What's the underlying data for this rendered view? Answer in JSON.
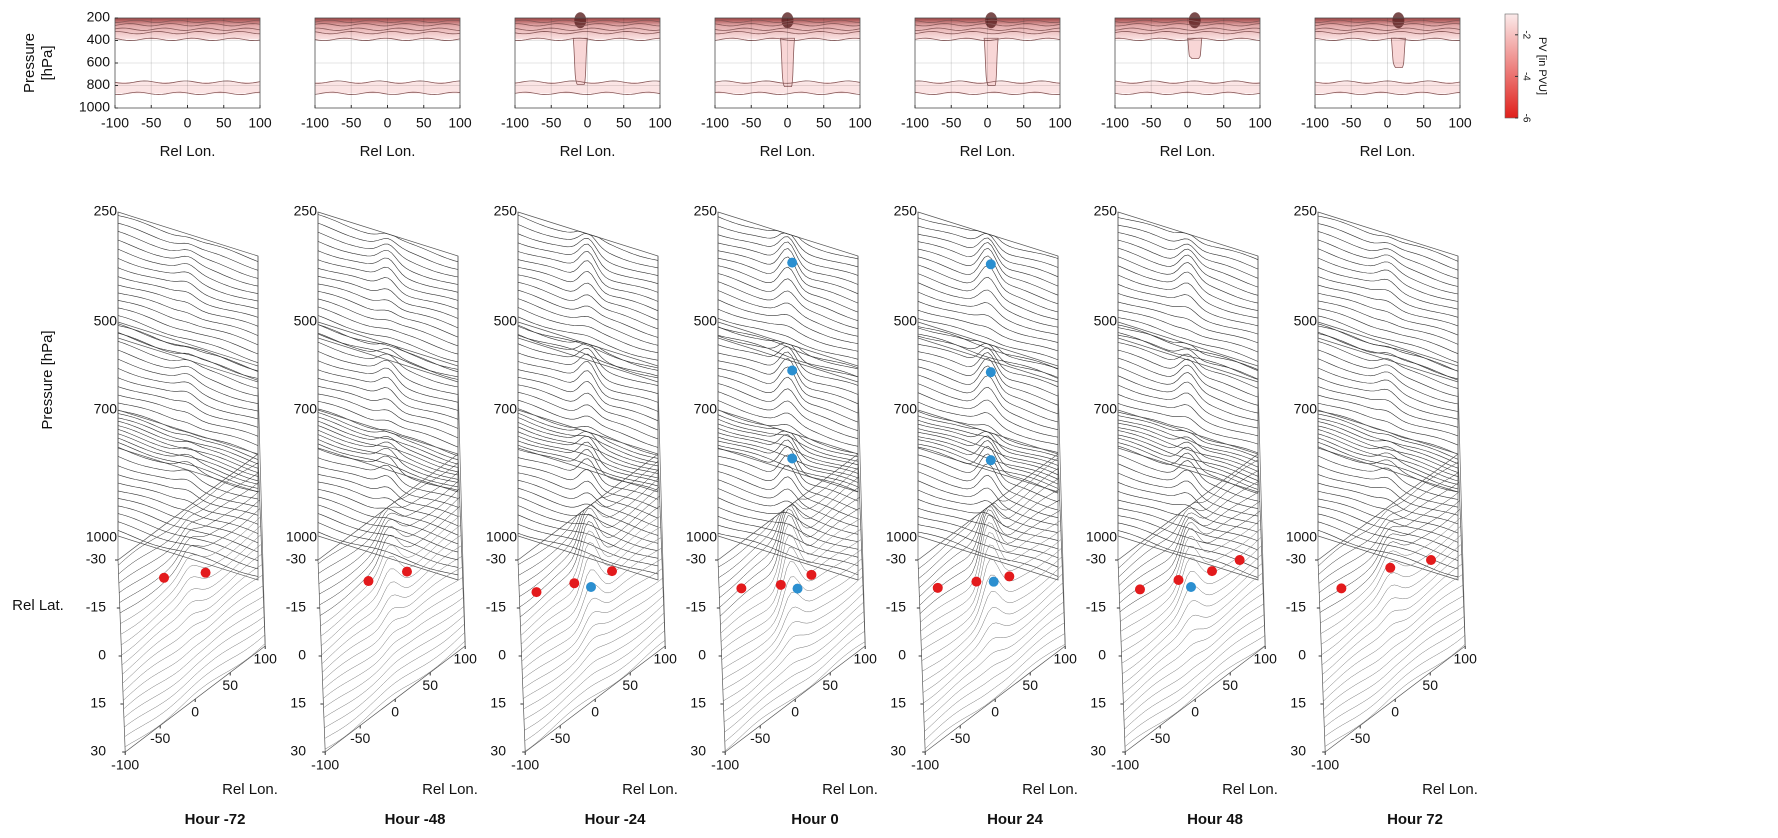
{
  "chart_data": [
    {
      "type": "cross-section",
      "xlabel": "Rel Lon.",
      "ylabel": [
        "Pressure",
        "[hPa]"
      ],
      "xlim": [
        -100,
        100
      ],
      "ylim": [
        200,
        1000
      ],
      "yinvert": true,
      "xticks": [
        -100,
        -50,
        0,
        50,
        100
      ],
      "yticks": [
        200,
        400,
        600,
        800,
        1000
      ],
      "grid": true
    },
    {
      "type": "cross-section",
      "xlabel": "Rel Lon.",
      "xlim": [
        -100,
        100
      ],
      "ylim": [
        200,
        1000
      ],
      "yinvert": true,
      "xticks": [
        -100,
        -50,
        0,
        50,
        100
      ],
      "grid": true
    },
    {
      "type": "cross-section",
      "xlabel": "Rel Lon.",
      "xlim": [
        -100,
        100
      ],
      "ylim": [
        200,
        1000
      ],
      "yinvert": true,
      "xticks": [
        -100,
        -50,
        0,
        50,
        100
      ],
      "grid": true
    },
    {
      "type": "cross-section",
      "xlabel": "Rel Lon.",
      "xlim": [
        -100,
        100
      ],
      "ylim": [
        200,
        1000
      ],
      "yinvert": true,
      "xticks": [
        -100,
        -50,
        0,
        50,
        100
      ],
      "grid": true
    },
    {
      "type": "cross-section",
      "xlabel": "Rel Lon.",
      "xlim": [
        -100,
        100
      ],
      "ylim": [
        200,
        1000
      ],
      "yinvert": true,
      "xticks": [
        -100,
        -50,
        0,
        50,
        100
      ],
      "grid": true
    },
    {
      "type": "cross-section",
      "xlabel": "Rel Lon.",
      "xlim": [
        -100,
        100
      ],
      "ylim": [
        200,
        1000
      ],
      "yinvert": true,
      "xticks": [
        -100,
        -50,
        0,
        50,
        100
      ],
      "grid": true
    },
    {
      "type": "cross-section",
      "xlabel": "Rel Lon.",
      "xlim": [
        -100,
        100
      ],
      "ylim": [
        200,
        1000
      ],
      "yinvert": true,
      "xticks": [
        -100,
        -50,
        0,
        50,
        100
      ],
      "grid": true
    },
    {
      "type": "colorbar",
      "label": "PV [in PVU]",
      "ylim": [
        -6,
        -1
      ],
      "yticks": [
        -2,
        -4,
        -6
      ],
      "colors": [
        "#fbeaea",
        "#e0201b"
      ]
    },
    {
      "type": "contour3d",
      "title": "Hour -72",
      "xlabel": "Rel Lon.",
      "ylabel": "Rel Lat.",
      "zlabel": "Pressure [hPa]",
      "xlim": [
        -100,
        100
      ],
      "ylim": [
        -30,
        30
      ],
      "zlim": [
        250,
        1000
      ],
      "xticks": [
        -100,
        -50,
        0,
        50,
        100
      ],
      "yticks": [
        -30,
        -15,
        0,
        15,
        30
      ],
      "zticks": [
        250,
        500,
        700,
        1000
      ],
      "series": [
        {
          "color": "#e31a1c",
          "x": [
            -37,
            21
          ],
          "y": [
            -14,
            -6
          ],
          "z": [
            1000,
            1000
          ]
        }
      ]
    },
    {
      "type": "contour3d",
      "title": "Hour -48",
      "xlabel": "Rel Lon.",
      "xlim": [
        -100,
        100
      ],
      "ylim": [
        -30,
        30
      ],
      "zlim": [
        250,
        1000
      ],
      "xticks": [
        -100,
        -50,
        0,
        50,
        100
      ],
      "yticks": [
        -30,
        -15,
        0,
        15,
        30
      ],
      "zticks": [
        250,
        500,
        700,
        1000
      ],
      "series": [
        {
          "color": "#e31a1c",
          "x": [
            -31,
            23
          ],
          "y": [
            -12,
            -6
          ],
          "z": [
            1000,
            1000
          ]
        }
      ]
    },
    {
      "type": "contour3d",
      "title": "Hour -24",
      "xlabel": "Rel Lon.",
      "xlim": [
        -100,
        100
      ],
      "ylim": [
        -30,
        30
      ],
      "zlim": [
        250,
        1000
      ],
      "xticks": [
        -100,
        -50,
        0,
        50,
        100
      ],
      "yticks": [
        -30,
        -15,
        0,
        15,
        30
      ],
      "zticks": [
        250,
        500,
        700,
        1000
      ],
      "series": [
        {
          "color": "#e31a1c",
          "x": [
            -76,
            -23,
            30
          ],
          "y": [
            -16,
            -10,
            -5
          ],
          "z": [
            1000,
            1000,
            1000
          ]
        },
        {
          "color": "#2b8fd0",
          "x": [
            0
          ],
          "y": [
            -5
          ],
          "z": [
            1000
          ]
        }
      ]
    },
    {
      "type": "contour3d",
      "title": "Hour 0",
      "xlabel": "Rel Lon.",
      "xlim": [
        -100,
        100
      ],
      "ylim": [
        -30,
        30
      ],
      "zlim": [
        250,
        1000
      ],
      "xticks": [
        -100,
        -50,
        0,
        50,
        100
      ],
      "yticks": [
        -30,
        -15,
        0,
        15,
        30
      ],
      "zticks": [
        250,
        500,
        700,
        1000
      ],
      "series": [
        {
          "color": "#e31a1c",
          "x": [
            -69,
            -14,
            29
          ],
          "y": [
            -16,
            -8,
            -4
          ],
          "z": [
            1000,
            1000,
            1000
          ]
        },
        {
          "color": "#2b8fd0",
          "x": [
            6,
            6,
            6,
            9
          ],
          "y": [
            -17,
            -18,
            -18,
            -3
          ],
          "z": [
            250,
            500,
            700,
            1000
          ]
        }
      ]
    },
    {
      "type": "contour3d",
      "title": "Hour 24",
      "xlabel": "Rel Lon.",
      "xlim": [
        -100,
        100
      ],
      "ylim": [
        -30,
        30
      ],
      "zlim": [
        250,
        1000
      ],
      "xticks": [
        -100,
        -50,
        0,
        50,
        100
      ],
      "yticks": [
        -30,
        -15,
        0,
        15,
        30
      ],
      "zticks": [
        250,
        500,
        700,
        1000
      ],
      "series": [
        {
          "color": "#e31a1c",
          "x": [
            -74,
            -20,
            26
          ],
          "y": [
            -17,
            -10,
            -4
          ],
          "z": [
            1000,
            1000,
            1000
          ]
        },
        {
          "color": "#2b8fd0",
          "x": [
            4,
            4,
            4,
            4
          ],
          "y": [
            -16,
            -17,
            -17,
            -6
          ],
          "z": [
            250,
            500,
            700,
            1000
          ]
        }
      ]
    },
    {
      "type": "contour3d",
      "title": "Hour 48",
      "xlabel": "Rel Lon.",
      "xlim": [
        -100,
        100
      ],
      "ylim": [
        -30,
        30
      ],
      "zlim": [
        250,
        1000
      ],
      "xticks": [
        -100,
        -50,
        0,
        50,
        100
      ],
      "yticks": [
        -30,
        -15,
        0,
        15,
        30
      ],
      "zticks": [
        250,
        500,
        700,
        1000
      ],
      "series": [
        {
          "color": "#e31a1c",
          "x": [
            -71,
            -17,
            30,
            69
          ],
          "y": [
            -16,
            -10,
            -5,
            -2
          ],
          "z": [
            1000,
            1000,
            1000,
            1000
          ]
        },
        {
          "color": "#2b8fd0",
          "x": [
            0
          ],
          "y": [
            -5
          ],
          "z": [
            1000
          ]
        }
      ]
    },
    {
      "type": "contour3d",
      "title": "Hour 72",
      "xlabel": "Rel Lon.",
      "xlim": [
        -100,
        100
      ],
      "ylim": [
        -30,
        30
      ],
      "zlim": [
        250,
        1000
      ],
      "xticks": [
        -100,
        -50,
        0,
        50,
        100
      ],
      "yticks": [
        -30,
        -15,
        0,
        15,
        30
      ],
      "zticks": [
        250,
        500,
        700,
        1000
      ],
      "series": [
        {
          "color": "#e31a1c",
          "x": [
            -69,
            0,
            57
          ],
          "y": [
            -16,
            -11,
            -4
          ],
          "z": [
            1000,
            1000,
            1000
          ]
        }
      ]
    }
  ]
}
